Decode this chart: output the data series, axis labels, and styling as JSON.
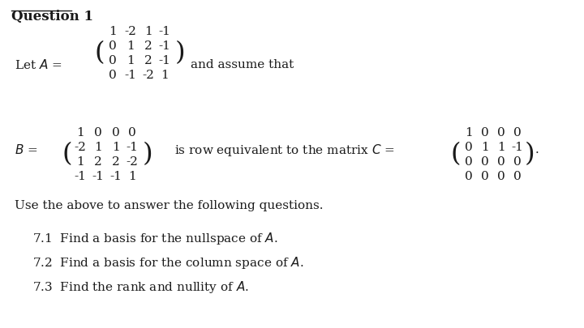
{
  "title": "Question 1",
  "bg_color": "#ffffff",
  "text_color": "#1a1a1a",
  "font_size": 11,
  "title_font_size": 12,
  "matrix_A": [
    [
      "1",
      "-2",
      "1",
      "-1"
    ],
    [
      "0",
      "1",
      "2",
      "-1"
    ],
    [
      "0",
      "1",
      "2",
      "-1"
    ],
    [
      "0",
      "-1",
      "-2",
      "1"
    ]
  ],
  "matrix_B": [
    [
      "1",
      "0",
      "0",
      "0"
    ],
    [
      "-2",
      "1",
      "1",
      "-1"
    ],
    [
      "1",
      "2",
      "2",
      "-2"
    ],
    [
      "-1",
      "-1",
      "-1",
      "1"
    ]
  ],
  "matrix_C": [
    [
      "1",
      "0",
      "0",
      "0"
    ],
    [
      "0",
      "1",
      "1",
      "-1"
    ],
    [
      "0",
      "0",
      "0",
      "0"
    ],
    [
      "0",
      "0",
      "0",
      "0"
    ]
  ],
  "questions": [
    "7.1  Find a basis for the nullspace of $A$.",
    "7.2  Find a basis for the column space of $A$.",
    "7.3  Find the rank and nullity of $A$."
  ],
  "instruction": "Use the above to answer the following questions.",
  "let_A_text": "Let $A =$",
  "and_assume": "and assume that",
  "B_text": "$B =$",
  "is_row_eq": "is row equivalent to the matrix $C =$"
}
